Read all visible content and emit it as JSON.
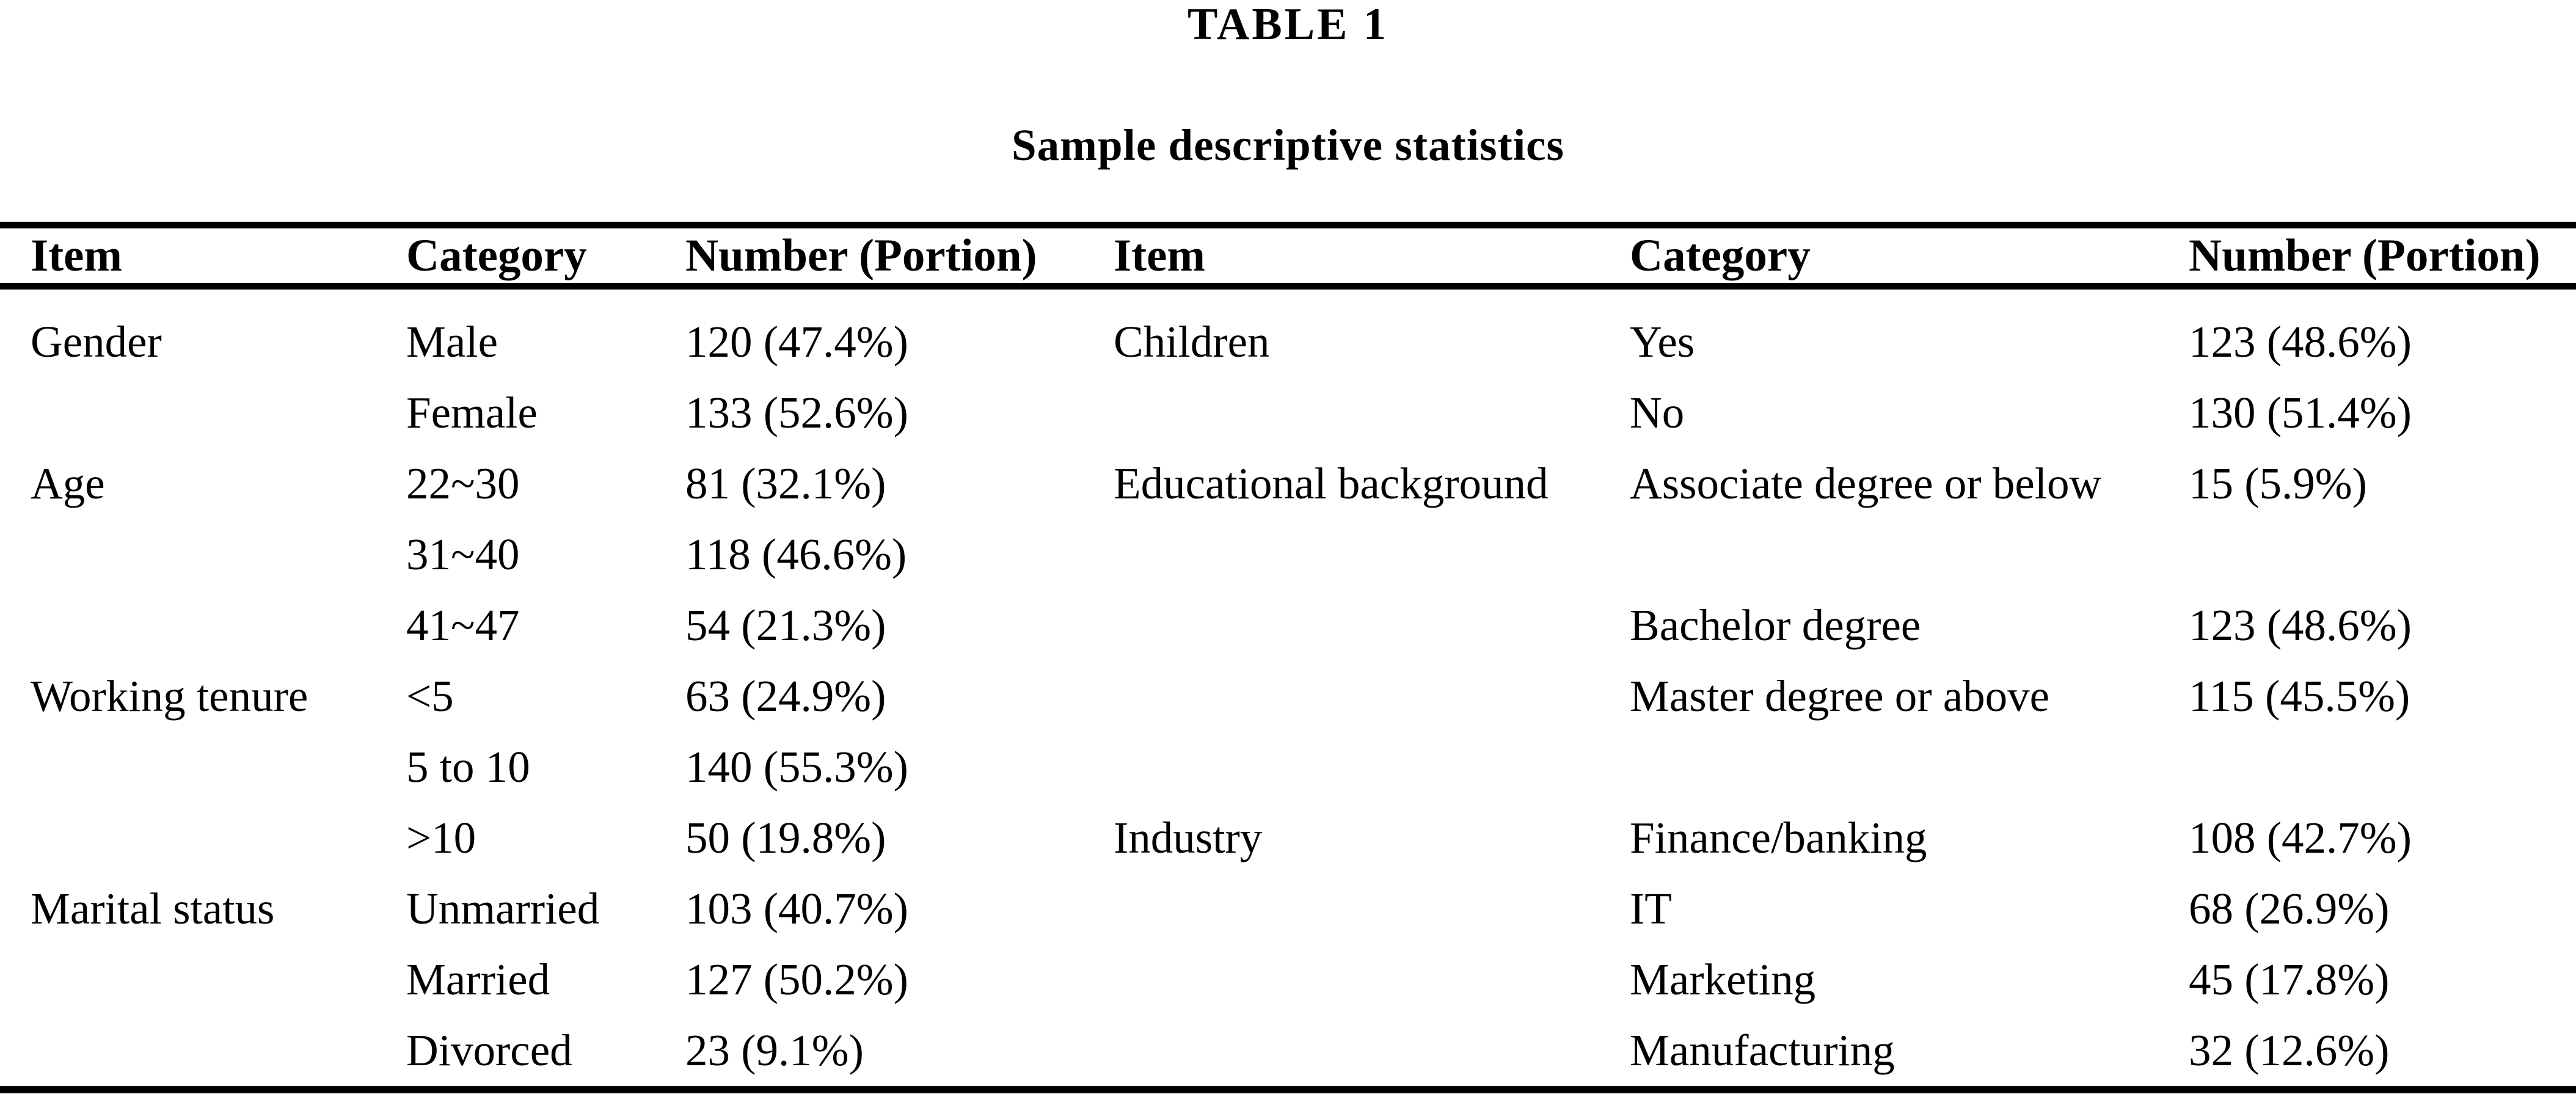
{
  "page": {
    "background_color": "#ffffff",
    "text_color": "#000000",
    "rule_color": "#000000"
  },
  "title": "TABLE 1",
  "subtitle": "Sample descriptive statistics",
  "table": {
    "headers": [
      "Item",
      "Category",
      "Number (Portion)",
      "Item",
      "Category",
      "Number (Portion)"
    ],
    "rows": [
      [
        "Gender",
        "Male",
        "120 (47.4%)",
        "Children",
        "Yes",
        "123 (48.6%)"
      ],
      [
        "",
        "Female",
        "133 (52.6%)",
        "",
        "No",
        "130 (51.4%)"
      ],
      [
        "Age",
        "22~30",
        "81 (32.1%)",
        "Educational background",
        "Associate degree or below",
        "15 (5.9%)"
      ],
      [
        "",
        "31~40",
        "118 (46.6%)",
        "",
        "",
        ""
      ],
      [
        "",
        "41~47",
        "54 (21.3%)",
        "",
        "Bachelor degree",
        "123 (48.6%)"
      ],
      [
        "Working tenure",
        "<5",
        "63 (24.9%)",
        "",
        "Master degree or above",
        "115 (45.5%)"
      ],
      [
        "",
        "5 to 10",
        "140 (55.3%)",
        "",
        "",
        ""
      ],
      [
        "",
        ">10",
        "50 (19.8%)",
        "Industry",
        "Finance/banking",
        "108 (42.7%)"
      ],
      [
        "Marital status",
        "Unmarried",
        "103 (40.7%)",
        "",
        "IT",
        "68 (26.9%)"
      ],
      [
        "",
        "Married",
        "127 (50.2%)",
        "",
        "Marketing",
        "45 (17.8%)"
      ],
      [
        "",
        "Divorced",
        "23 (9.1%)",
        "",
        "Manufacturing",
        "32 (12.6%)"
      ]
    ]
  }
}
